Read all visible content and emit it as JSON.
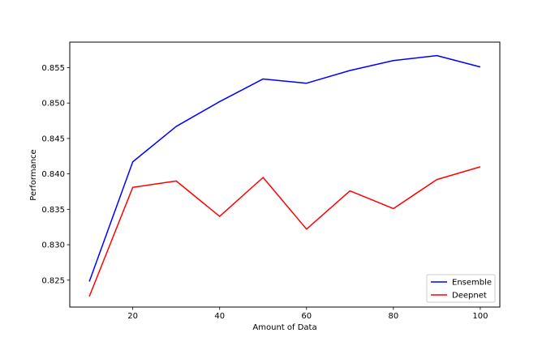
{
  "chart_data": {
    "type": "line",
    "x": [
      10,
      20,
      30,
      40,
      50,
      60,
      70,
      80,
      90,
      100
    ],
    "series": [
      {
        "name": "Ensemble",
        "color": "#0000ff",
        "values": [
          0.8248,
          0.8417,
          0.8467,
          0.8502,
          0.8534,
          0.8528,
          0.8546,
          0.856,
          0.8567,
          0.8551
        ]
      },
      {
        "name": "Deepnet",
        "color": "#ff0000",
        "values": [
          0.8227,
          0.8381,
          0.839,
          0.834,
          0.8395,
          0.8322,
          0.8376,
          0.8351,
          0.8392,
          0.841
        ]
      }
    ],
    "xlabel": "Amount of Data",
    "ylabel": "Performance",
    "xlim": [
      5.5,
      104.5
    ],
    "ylim": [
      0.8212,
      0.8586
    ],
    "xticks": [
      20,
      40,
      60,
      80,
      100
    ],
    "yticks": [
      0.825,
      0.83,
      0.835,
      0.84,
      0.845,
      0.85,
      0.855
    ],
    "ytick_labels": [
      "0.825",
      "0.830",
      "0.835",
      "0.840",
      "0.845",
      "0.850",
      "0.855"
    ],
    "grid": false,
    "legend_position": "bottom-right"
  }
}
